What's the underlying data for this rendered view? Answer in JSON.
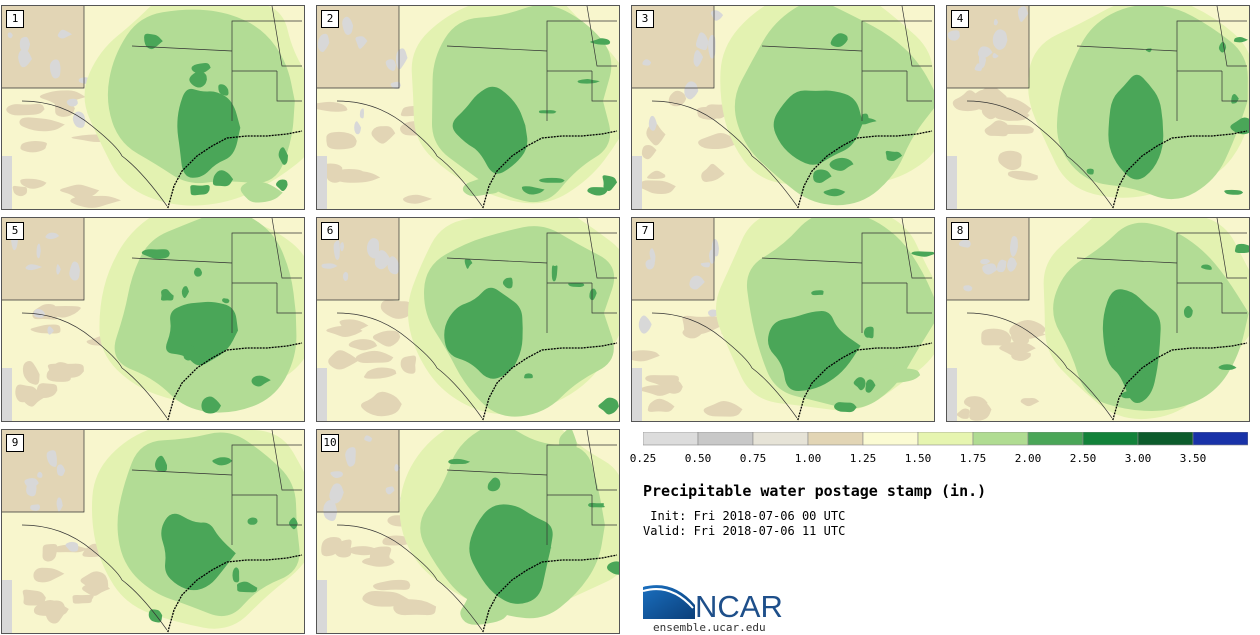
{
  "title": "Precipitable water postage stamp (in.)",
  "init_line": " Init: Fri 2018-07-06 00 UTC",
  "valid_line": "Valid: Fri 2018-07-06 11 UTC",
  "logo_text": "NCAR",
  "site": "ensemble.ucar.edu",
  "panels": [
    {
      "label": "1"
    },
    {
      "label": "2"
    },
    {
      "label": "3"
    },
    {
      "label": "4"
    },
    {
      "label": "5"
    },
    {
      "label": "6"
    },
    {
      "label": "7"
    },
    {
      "label": "8"
    },
    {
      "label": "9"
    },
    {
      "label": "10"
    }
  ],
  "colorbar": {
    "colors": [
      "#dcdcdc",
      "#c8c8c8",
      "#e6e3d7",
      "#e2d5b5",
      "#fbfbd3",
      "#e6f5b0",
      "#b0dc92",
      "#4aa658",
      "#12823a",
      "#0c5c2c",
      "#1932a8"
    ],
    "tick_labels": [
      "0.25",
      "0.50",
      "0.75",
      "1.00",
      "1.25",
      "1.50",
      "1.75",
      "2.00",
      "2.50",
      "3.00",
      "3.50"
    ]
  },
  "map_colors": {
    "background": "#f8f6cd",
    "tan": "#e2d5b5",
    "gray": "#d8d8d8",
    "pale_green": "#e3f2b1",
    "light_green": "#b2dc95",
    "medium_green": "#4aa658",
    "coast": "#000000",
    "borders": "#333333"
  }
}
